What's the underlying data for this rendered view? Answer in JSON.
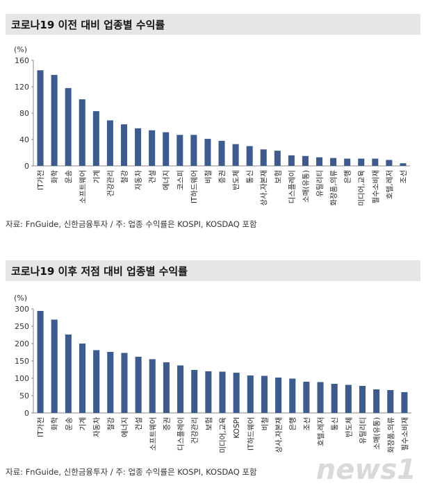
{
  "charts": [
    {
      "title": "코로나19 이전 대비 업종별 수익률",
      "source": "자료: FnGuide, 신한금융투자 / 주: 업종 수익률은 KOSPI, KOSDAQ 포함",
      "chart_data": {
        "type": "bar",
        "unit_label": "(%)",
        "ylim": [
          0,
          160
        ],
        "yticks": [
          0,
          40,
          80,
          120,
          160
        ],
        "bar_color": "#3d5b8c",
        "categories": [
          "IT가전",
          "화학",
          "운송",
          "소프트웨어",
          "기계",
          "건강관리",
          "철강",
          "자동차",
          "건설",
          "에너지",
          "코스피",
          "IT하드웨어",
          "비철",
          "증권",
          "반도체",
          "통신",
          "상사,자본재",
          "보험",
          "디스플레이",
          "소매(유통)",
          "유틸리티",
          "화장품,의류",
          "은행",
          "미디어,교육",
          "필수소비재",
          "호텔,레저",
          "조선"
        ],
        "values": [
          145,
          138,
          118,
          101,
          83,
          69,
          63,
          57,
          54,
          51,
          47,
          47,
          41,
          38,
          33,
          30,
          25,
          23,
          16,
          15,
          13,
          12,
          11,
          11,
          11,
          9,
          4
        ]
      }
    },
    {
      "title": "코로나19 이후 저점 대비 업종별 수익률",
      "source": "자료: FnGuide, 신한금융투자 / 주: 업종 수익률은 KOSPI, KOSDAQ 포함",
      "chart_data": {
        "type": "bar",
        "unit_label": "(%)",
        "ylim": [
          0,
          300
        ],
        "yticks": [
          0,
          50,
          100,
          150,
          200,
          250,
          300
        ],
        "bar_color": "#3d5b8c",
        "categories": [
          "IT가전",
          "화학",
          "운송",
          "기계",
          "자동차",
          "철강",
          "에너지",
          "건설",
          "소프트웨어",
          "증권",
          "디스플레이",
          "건강관리",
          "보험",
          "미디어,교육",
          "KOSPI",
          "IT하드웨어",
          "비철",
          "상사,자본재",
          "은행",
          "조선",
          "호텔,레저",
          "통신",
          "반도체",
          "유틸리티",
          "소매(유통)",
          "화장품,의류",
          "필수소비재"
        ],
        "values": [
          294,
          269,
          226,
          200,
          181,
          176,
          173,
          162,
          155,
          146,
          137,
          124,
          120,
          119,
          116,
          108,
          107,
          102,
          99,
          90,
          89,
          84,
          81,
          78,
          68,
          66,
          60
        ]
      }
    }
  ],
  "watermark": "news1"
}
